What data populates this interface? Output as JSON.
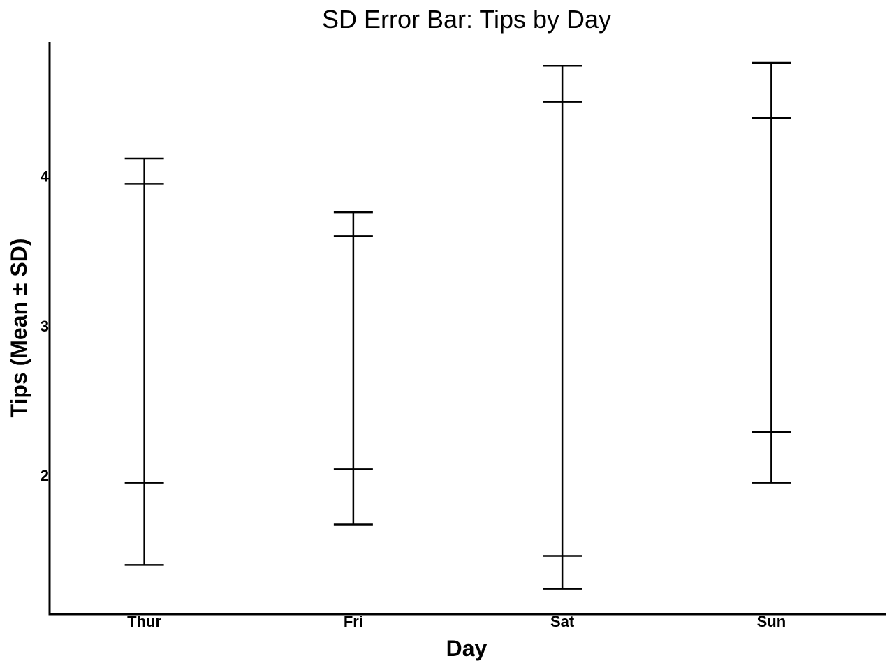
{
  "chart_data": {
    "type": "errorbar",
    "title": "SD Error Bar: Tips by Day",
    "xlabel": "Day",
    "ylabel": "Tips (Mean ± SD)",
    "categories": [
      "Thur",
      "Fri",
      "Sat",
      "Sun"
    ],
    "series": [
      {
        "name": "",
        "intervals": [
          {
            "outer_low": 1.4,
            "inner_low": 1.95,
            "inner_high": 3.95,
            "outer_high": 4.12
          },
          {
            "outer_low": 1.67,
            "inner_low": 2.04,
            "inner_high": 3.6,
            "outer_high": 3.76
          },
          {
            "outer_low": 1.24,
            "inner_low": 1.46,
            "inner_high": 4.5,
            "outer_high": 4.74
          },
          {
            "outer_low": 1.95,
            "inner_low": 2.29,
            "inner_high": 4.39,
            "outer_high": 4.76
          }
        ]
      }
    ],
    "yticks": [
      "2",
      "3",
      "4"
    ],
    "ylim": [
      1.07,
      4.9
    ],
    "grid": false,
    "color": "#000000"
  }
}
